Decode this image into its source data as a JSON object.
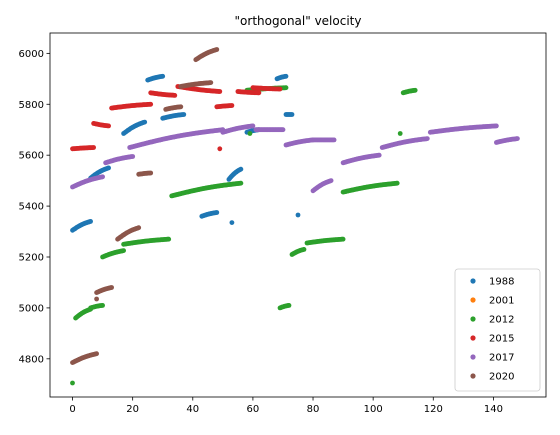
{
  "chart_data": {
    "type": "scatter",
    "title": "\"orthogonal\" velocity",
    "xlabel": "",
    "ylabel": "",
    "xlim": [
      -7.5,
      157.5
    ],
    "ylim": [
      4650,
      6080
    ],
    "xticks": [
      0,
      20,
      40,
      60,
      80,
      100,
      120,
      140
    ],
    "yticks": [
      4800,
      5000,
      5200,
      5400,
      5600,
      5800,
      6000
    ],
    "grid": false,
    "legend_position": "lower-right",
    "series": [
      {
        "name": "1988",
        "color": "#1f77b4",
        "segments": [
          {
            "x": [
              0,
              6
            ],
            "y": [
              5305,
              5340
            ]
          },
          {
            "x": [
              6,
              12
            ],
            "y": [
              5510,
              5550
            ]
          },
          {
            "x": [
              17,
              24
            ],
            "y": [
              5685,
              5730
            ]
          },
          {
            "x": [
              25,
              30
            ],
            "y": [
              5895,
              5910
            ]
          },
          {
            "x": [
              30,
              37
            ],
            "y": [
              5745,
              5760
            ]
          },
          {
            "x": [
              43,
              48
            ],
            "y": [
              5360,
              5375
            ]
          },
          {
            "x": [
              52,
              56
            ],
            "y": [
              5505,
              5545
            ]
          },
          {
            "x": [
              58,
              62
            ],
            "y": [
              5690,
              5700
            ]
          },
          {
            "x": [
              68,
              71
            ],
            "y": [
              5900,
              5910
            ]
          },
          {
            "x": [
              71,
              73
            ],
            "y": [
              5760,
              5760
            ]
          }
        ],
        "points": [
          {
            "x": 53,
            "y": 5335
          },
          {
            "x": 75,
            "y": 5365
          }
        ]
      },
      {
        "name": "2001",
        "color": "#ff7f0e",
        "segments": [],
        "points": []
      },
      {
        "name": "2012",
        "color": "#2ca02c",
        "segments": [
          {
            "x": [
              1,
              6
            ],
            "y": [
              4960,
              4995
            ]
          },
          {
            "x": [
              6,
              10
            ],
            "y": [
              5000,
              5010
            ]
          },
          {
            "x": [
              10,
              17
            ],
            "y": [
              5200,
              5225
            ]
          },
          {
            "x": [
              17,
              32
            ],
            "y": [
              5250,
              5270
            ]
          },
          {
            "x": [
              33,
              56
            ],
            "y": [
              5440,
              5490
            ]
          },
          {
            "x": [
              69,
              72
            ],
            "y": [
              5000,
              5010
            ]
          },
          {
            "x": [
              73,
              77
            ],
            "y": [
              5210,
              5230
            ]
          },
          {
            "x": [
              78,
              90
            ],
            "y": [
              5255,
              5270
            ]
          },
          {
            "x": [
              90,
              108
            ],
            "y": [
              5455,
              5490
            ]
          },
          {
            "x": [
              58,
              71
            ],
            "y": [
              5855,
              5865
            ]
          },
          {
            "x": [
              110,
              114
            ],
            "y": [
              5845,
              5855
            ]
          }
        ],
        "points": [
          {
            "x": 0,
            "y": 4705
          },
          {
            "x": 59,
            "y": 5685
          },
          {
            "x": 109,
            "y": 5685
          }
        ]
      },
      {
        "name": "2015",
        "color": "#d62728",
        "segments": [
          {
            "x": [
              0,
              7
            ],
            "y": [
              5625,
              5630
            ]
          },
          {
            "x": [
              7,
              12
            ],
            "y": [
              5725,
              5715
            ]
          },
          {
            "x": [
              13,
              26
            ],
            "y": [
              5785,
              5800
            ]
          },
          {
            "x": [
              26,
              34
            ],
            "y": [
              5845,
              5835
            ]
          },
          {
            "x": [
              35,
              49
            ],
            "y": [
              5870,
              5850
            ]
          },
          {
            "x": [
              48,
              53
            ],
            "y": [
              5790,
              5795
            ]
          },
          {
            "x": [
              55,
              62
            ],
            "y": [
              5850,
              5845
            ]
          },
          {
            "x": [
              60,
              69
            ],
            "y": [
              5865,
              5860
            ]
          }
        ],
        "points": [
          {
            "x": 49,
            "y": 5625
          }
        ]
      },
      {
        "name": "2017",
        "color": "#9467bd",
        "segments": [
          {
            "x": [
              0,
              10
            ],
            "y": [
              5475,
              5515
            ]
          },
          {
            "x": [
              11,
              20
            ],
            "y": [
              5570,
              5595
            ]
          },
          {
            "x": [
              19,
              50
            ],
            "y": [
              5630,
              5700
            ]
          },
          {
            "x": [
              50,
              60
            ],
            "y": [
              5690,
              5715
            ]
          },
          {
            "x": [
              61,
              70
            ],
            "y": [
              5700,
              5700
            ]
          },
          {
            "x": [
              71,
              80
            ],
            "y": [
              5640,
              5660
            ]
          },
          {
            "x": [
              80,
              87
            ],
            "y": [
              5660,
              5660
            ]
          },
          {
            "x": [
              80,
              86
            ],
            "y": [
              5460,
              5500
            ]
          },
          {
            "x": [
              90,
              102
            ],
            "y": [
              5570,
              5600
            ]
          },
          {
            "x": [
              103,
              118
            ],
            "y": [
              5630,
              5665
            ]
          },
          {
            "x": [
              119,
              141
            ],
            "y": [
              5690,
              5715
            ]
          },
          {
            "x": [
              141,
              148
            ],
            "y": [
              5650,
              5665
            ]
          }
        ],
        "points": []
      },
      {
        "name": "2020",
        "color": "#8c564b",
        "segments": [
          {
            "x": [
              0,
              8
            ],
            "y": [
              4785,
              4820
            ]
          },
          {
            "x": [
              8,
              13
            ],
            "y": [
              5060,
              5080
            ]
          },
          {
            "x": [
              15,
              22
            ],
            "y": [
              5270,
              5315
            ]
          },
          {
            "x": [
              22,
              26
            ],
            "y": [
              5525,
              5530
            ]
          },
          {
            "x": [
              31,
              36
            ],
            "y": [
              5780,
              5790
            ]
          },
          {
            "x": [
              36,
              46
            ],
            "y": [
              5870,
              5885
            ]
          },
          {
            "x": [
              41,
              48
            ],
            "y": [
              5975,
              6015
            ]
          }
        ],
        "points": [
          {
            "x": 8,
            "y": 5035
          }
        ]
      }
    ]
  }
}
